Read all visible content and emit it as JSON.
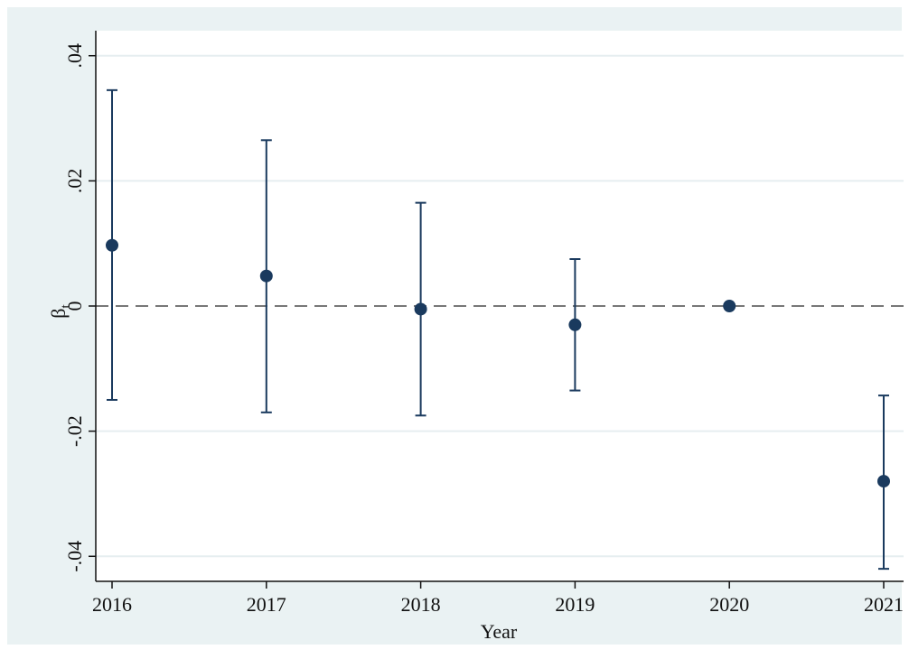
{
  "chart_data": {
    "type": "scatter",
    "xlabel": "Year",
    "ylabel": "β",
    "ylabel_subscript": "t",
    "x": [
      2016,
      2017,
      2018,
      2019,
      2020,
      2021
    ],
    "x_tick_labels": [
      "2016",
      "2017",
      "2018",
      "2019",
      "2020",
      "2021"
    ],
    "y_ticks": [
      -0.04,
      -0.02,
      0,
      0.02,
      0.04
    ],
    "y_tick_labels": [
      "-.04",
      "-.02",
      "0",
      ".02",
      ".04"
    ],
    "ylim": [
      -0.044,
      0.044
    ],
    "reference_line": 0,
    "series": [
      {
        "estimates": [
          0.0097,
          0.0048,
          -0.0005,
          -0.003,
          0.0,
          -0.028
        ],
        "ci_lower": [
          -0.015,
          -0.017,
          -0.0175,
          -0.0135,
          0.0,
          -0.042
        ],
        "ci_upper": [
          0.0345,
          0.0265,
          0.0165,
          0.0075,
          0.0,
          -0.0143
        ]
      }
    ],
    "colors": {
      "points": "#1a3a5e",
      "background": "#eaf2f3",
      "plot_area": "#ffffff"
    }
  }
}
